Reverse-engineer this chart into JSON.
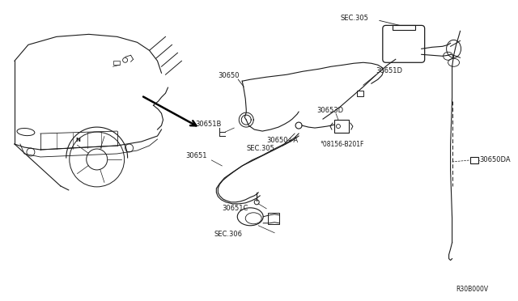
{
  "bg_color": "#ffffff",
  "line_color": "#1a1a1a",
  "text_color": "#1a1a1a",
  "fig_width": 6.4,
  "fig_height": 3.72,
  "dpi": 100,
  "reference_code": "R30B000V",
  "labels": {
    "SEC305_top": "SEC.305",
    "30651D": "30651D",
    "30650": "30650",
    "SEC305_mid": "SEC.305",
    "30650A": "30650+A",
    "30651B": "30651B",
    "30651": "30651",
    "30651C": "30651C",
    "SEC306": "SEC.306",
    "30653D": "30653D",
    "08156": "°08156-B201F",
    "30650DA": "30650DA"
  }
}
